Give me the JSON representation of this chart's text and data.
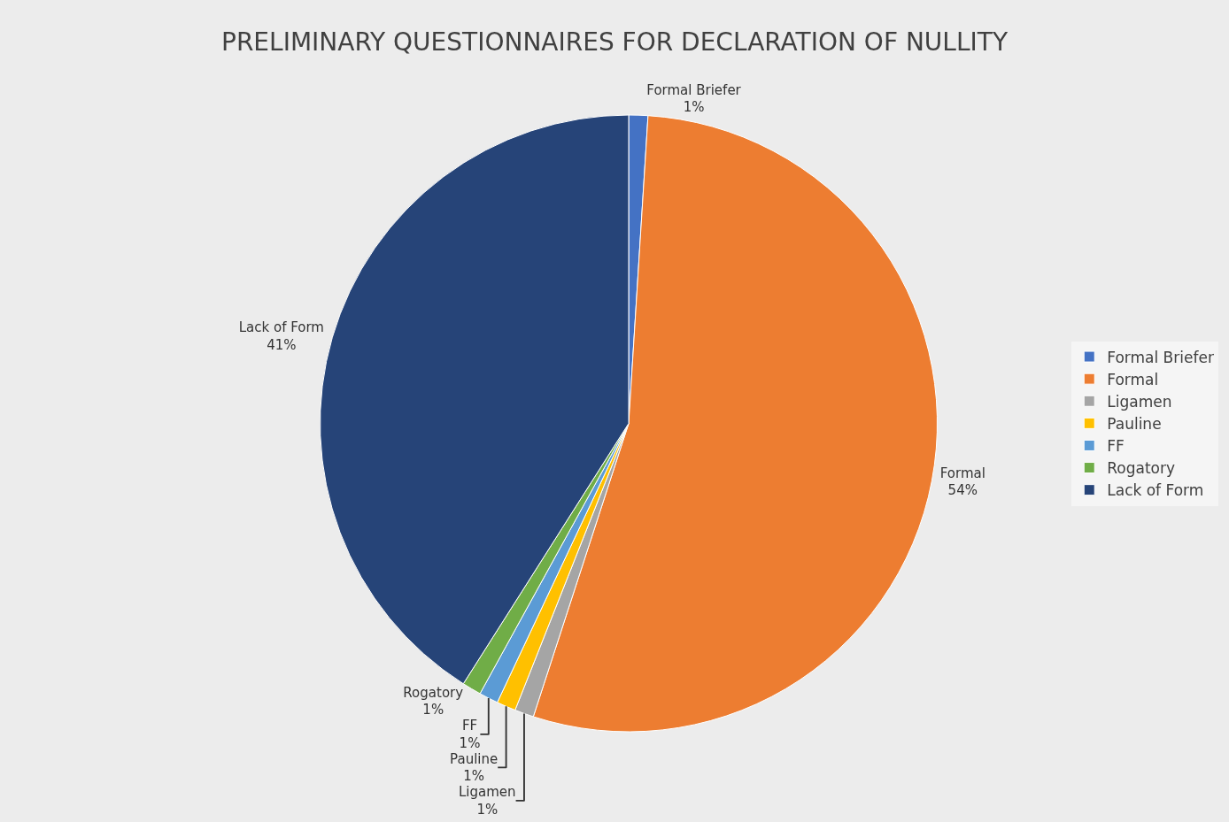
{
  "chart_data": {
    "type": "pie",
    "title": "PRELIMINARY QUESTIONNAIRES FOR DECLARATION OF NULLITY",
    "categories": [
      "Formal Briefer",
      "Formal",
      "Ligamen",
      "Pauline",
      "FF",
      "Rogatory",
      "Lack of Form"
    ],
    "values": [
      1,
      54,
      1,
      1,
      1,
      1,
      41
    ],
    "value_labels": [
      "1%",
      "54%",
      "1%",
      "1%",
      "1%",
      "1%",
      "41%"
    ],
    "colors": [
      "#4472c4",
      "#ed7d31",
      "#a5a5a5",
      "#ffc000",
      "#5b9bd5",
      "#70ad47",
      "#264478"
    ],
    "legend": "right"
  }
}
